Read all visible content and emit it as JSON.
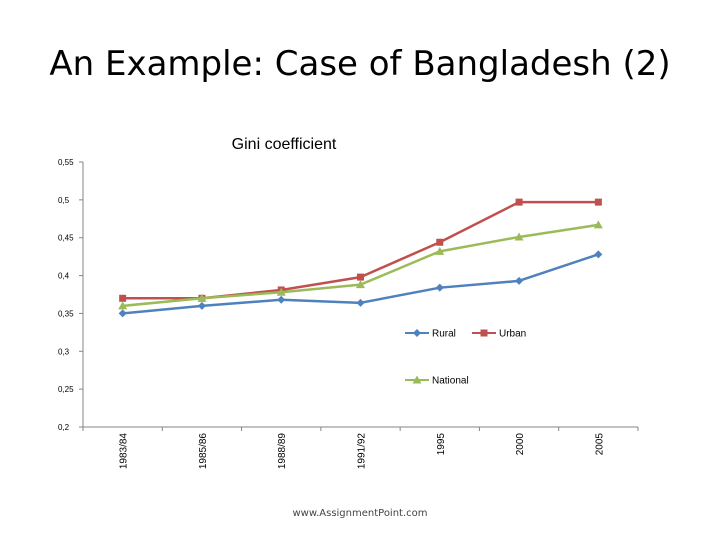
{
  "slide": {
    "title": "An Example: Case of Bangladesh (2)",
    "footer": "www.AssignmentPoint.com"
  },
  "chart_data": {
    "type": "line",
    "title": "Gini coefficient",
    "xlabel": "",
    "ylabel": "",
    "categories": [
      "1983/84",
      "1985/86",
      "1988/89",
      "1991/92",
      "1995",
      "2000",
      "2005"
    ],
    "y_ticks": [
      "0,2",
      "0,25",
      "0,3",
      "0,35",
      "0,4",
      "0,45",
      "0,5",
      "0,55"
    ],
    "ylim": [
      0.2,
      0.55
    ],
    "grid": false,
    "legend_position": "right",
    "series": [
      {
        "name": "Rural",
        "color": "#4F81BD",
        "marker": "diamond",
        "values": [
          0.35,
          0.36,
          0.368,
          0.364,
          0.384,
          0.393,
          0.428
        ]
      },
      {
        "name": "Urban",
        "color": "#C0504D",
        "marker": "square",
        "values": [
          0.37,
          0.37,
          0.381,
          0.398,
          0.444,
          0.497,
          0.497
        ]
      },
      {
        "name": "National",
        "color": "#9BBB59",
        "marker": "triangle",
        "values": [
          0.36,
          0.37,
          0.378,
          0.388,
          0.432,
          0.451,
          0.467
        ]
      }
    ]
  }
}
